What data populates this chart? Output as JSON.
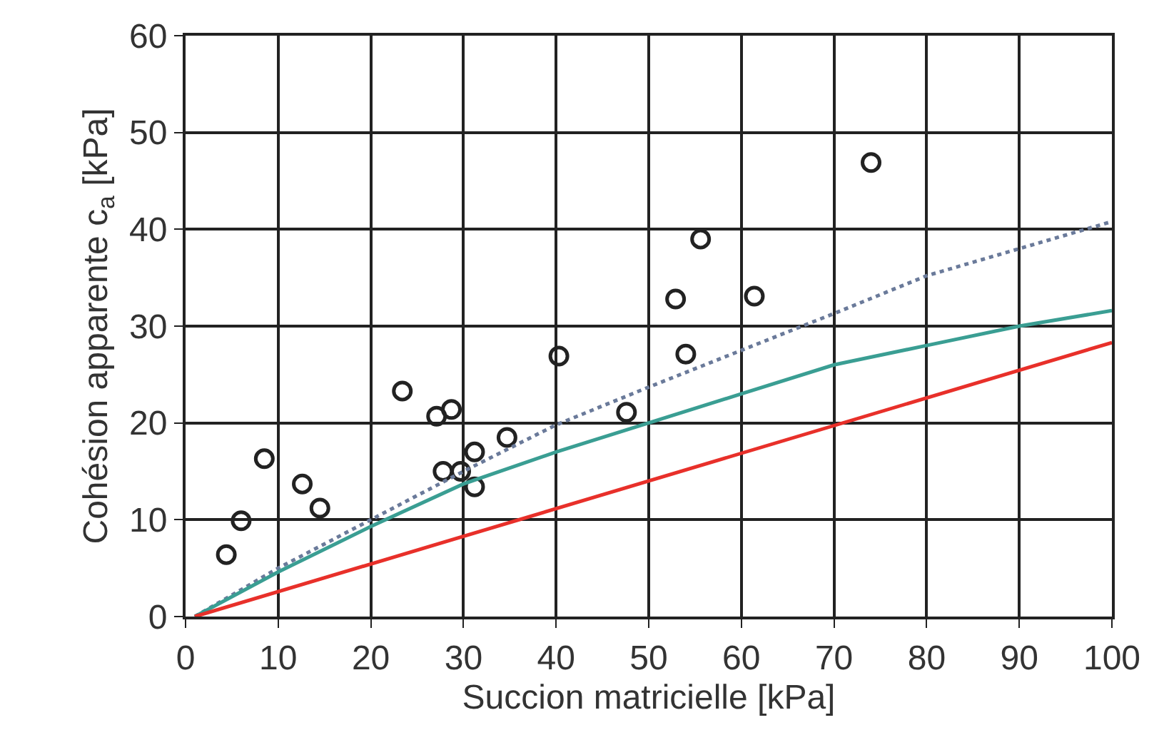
{
  "chart_data": {
    "type": "scatter",
    "xlabel": "Succion matricielle [kPa]",
    "ylabel": "Cohésion apparente c$_{a}$ [kPa]",
    "xlim": [
      0,
      100
    ],
    "xticks": [
      0,
      10,
      20,
      30,
      40,
      50,
      60,
      70,
      80,
      90,
      100
    ],
    "ylim": [
      0,
      60
    ],
    "yticks": [
      0,
      10,
      20,
      30,
      40,
      50,
      60
    ],
    "grid": true,
    "series": [
      {
        "color": "#222222",
        "marker": "circle",
        "x": [
          4.4,
          6.0,
          8.5,
          12.6,
          14.5,
          23.4,
          27.1,
          28.7,
          27.8,
          29.7,
          31.2,
          31.2,
          34.7,
          40.3,
          47.6,
          52.9,
          55.6,
          54.0,
          61.4,
          74.0
        ],
        "values": [
          6.4,
          9.9,
          16.3,
          13.7,
          11.2,
          23.3,
          20.7,
          21.4,
          15.0,
          15.0,
          17.0,
          13.4,
          18.5,
          26.9,
          21.1,
          32.8,
          39.0,
          27.1,
          33.1,
          46.9
        ]
      },
      {
        "type": "line",
        "color": "#6a7a9a",
        "line_style": "dotted",
        "marker": "none",
        "x": [
          1,
          10,
          20,
          30,
          40,
          50,
          60,
          70,
          80,
          90,
          100
        ],
        "values": [
          0,
          5,
          10,
          15,
          19.8,
          23.7,
          27.5,
          31.3,
          35.2,
          38,
          40.8
        ]
      },
      {
        "type": "line",
        "color": "#3a9e93",
        "line_style": "solid",
        "marker": "none",
        "x": [
          1,
          10,
          20,
          30,
          40,
          50,
          60,
          70,
          80,
          90,
          100
        ],
        "values": [
          0,
          4.6,
          9.3,
          13.7,
          17,
          20,
          23,
          26,
          28,
          30,
          31.6
        ]
      },
      {
        "type": "line",
        "color": "#e8302a",
        "line_style": "solid",
        "marker": "none",
        "x": [
          1,
          100
        ],
        "values": [
          0,
          28.3
        ]
      }
    ]
  }
}
